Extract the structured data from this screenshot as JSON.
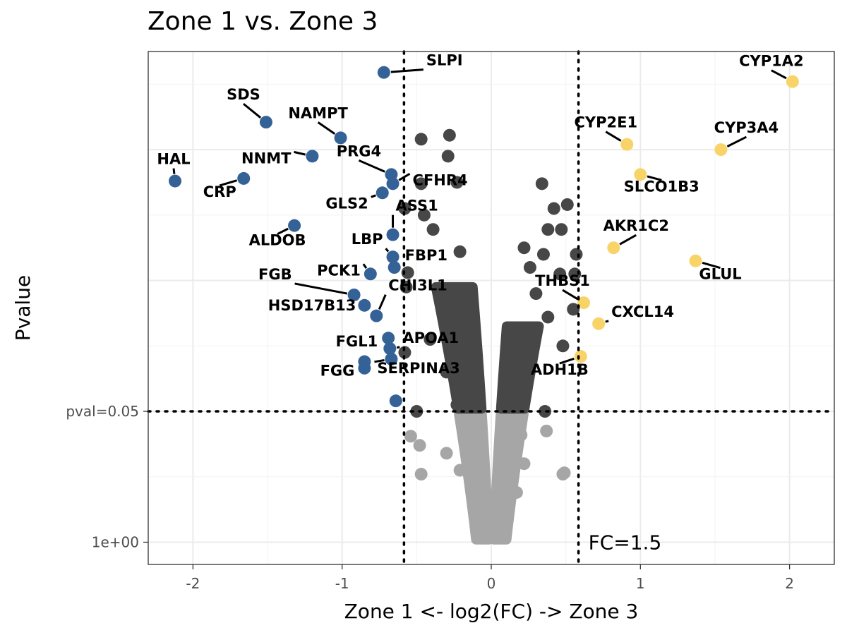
{
  "chart_data": {
    "type": "scatter",
    "title": "Zone 1 vs. Zone 3",
    "xlabel": "Zone 1 <- log2(FC) -> Zone 3",
    "ylabel": "Pvalue",
    "xlim": [
      -2.3,
      2.3
    ],
    "ylim": [
      -0.17,
      3.75
    ],
    "x_ticks": [
      {
        "value": -2,
        "label": "-2"
      },
      {
        "value": -1,
        "label": "-1"
      },
      {
        "value": 0,
        "label": "0"
      },
      {
        "value": 1,
        "label": "1"
      },
      {
        "value": 2,
        "label": "2"
      }
    ],
    "y_ticks": [
      {
        "value": 0,
        "label": "1e+00"
      },
      {
        "value": 1,
        "label": "pval=0.05"
      }
    ],
    "y_scale": "-log10 p (labels show p-values)",
    "grid": true,
    "thresholds": {
      "fc_lines_x": [
        -0.585,
        0.585
      ],
      "fc_label": "FC=1.5",
      "pval_line_y": 1.0
    },
    "colors": {
      "zone1": "#346296",
      "zone3": "#f8d468",
      "significant": "#474747",
      "not_significant": "#a6a6a6"
    },
    "series": [
      {
        "group": "zone1",
        "points": [
          {
            "x": -0.72,
            "y": 3.59,
            "label": "SLPI"
          },
          {
            "x": -1.51,
            "y": 3.21,
            "label": "SDS"
          },
          {
            "x": -1.01,
            "y": 3.09,
            "label": "NAMPT"
          },
          {
            "x": -1.2,
            "y": 2.95,
            "label": "NNMT"
          },
          {
            "x": -2.12,
            "y": 2.76,
            "label": "HAL"
          },
          {
            "x": -1.66,
            "y": 2.78,
            "label": "CRP"
          },
          {
            "x": -0.67,
            "y": 2.81,
            "label": "PRG4"
          },
          {
            "x": -0.66,
            "y": 2.74,
            "label": "CFHR4"
          },
          {
            "x": -0.73,
            "y": 2.67,
            "label": "GLS2"
          },
          {
            "x": -0.66,
            "y": 2.35,
            "label": "ASS1"
          },
          {
            "x": -1.32,
            "y": 2.42,
            "label": "ALDOB"
          },
          {
            "x": -0.66,
            "y": 2.18,
            "label": "LBP"
          },
          {
            "x": -0.65,
            "y": 2.1,
            "label": "FBP1"
          },
          {
            "x": -0.81,
            "y": 2.05,
            "label": "PCK1"
          },
          {
            "x": -0.92,
            "y": 1.89,
            "label": "FGB"
          },
          {
            "x": -0.85,
            "y": 1.81,
            "label": "HSD17B13"
          },
          {
            "x": -0.77,
            "y": 1.73,
            "label": "CHI3L1"
          },
          {
            "x": -0.69,
            "y": 1.56,
            "label": "FGL1"
          },
          {
            "x": -0.68,
            "y": 1.48,
            "label": "APOA1"
          },
          {
            "x": -0.67,
            "y": 1.4,
            "label": "SERPINA3"
          },
          {
            "x": -0.85,
            "y": 1.38,
            "label": "FGG"
          },
          {
            "x": -0.85,
            "y": 1.33,
            "label": ""
          },
          {
            "x": -0.64,
            "y": 1.08,
            "label": ""
          }
        ]
      },
      {
        "group": "zone3",
        "points": [
          {
            "x": 2.02,
            "y": 3.52,
            "label": "CYP1A2"
          },
          {
            "x": 0.91,
            "y": 3.04,
            "label": "CYP2E1"
          },
          {
            "x": 1.54,
            "y": 3.0,
            "label": "CYP3A4"
          },
          {
            "x": 1.0,
            "y": 2.81,
            "label": "SLCO1B3"
          },
          {
            "x": 0.82,
            "y": 2.25,
            "label": "AKR1C2"
          },
          {
            "x": 1.37,
            "y": 2.15,
            "label": "GLUL"
          },
          {
            "x": 0.62,
            "y": 1.83,
            "label": "THBS1"
          },
          {
            "x": 0.72,
            "y": 1.67,
            "label": "CXCL14"
          },
          {
            "x": 0.6,
            "y": 1.42,
            "label": "ADH1B"
          }
        ]
      },
      {
        "group": "significant",
        "points": [
          {
            "x": -0.28,
            "y": 3.11
          },
          {
            "x": -0.47,
            "y": 3.08
          },
          {
            "x": -0.29,
            "y": 2.95
          },
          {
            "x": -0.47,
            "y": 2.74
          },
          {
            "x": -0.23,
            "y": 2.75
          },
          {
            "x": -0.58,
            "y": 2.55
          },
          {
            "x": -0.45,
            "y": 2.5
          },
          {
            "x": -0.39,
            "y": 2.39
          },
          {
            "x": -0.21,
            "y": 2.22
          },
          {
            "x": -0.56,
            "y": 2.06
          },
          {
            "x": -0.57,
            "y": 1.95
          },
          {
            "x": -0.34,
            "y": 1.9
          },
          {
            "x": -0.18,
            "y": 1.72
          },
          {
            "x": -0.58,
            "y": 1.45
          },
          {
            "x": -0.41,
            "y": 1.55
          },
          {
            "x": -0.3,
            "y": 1.3
          },
          {
            "x": -0.23,
            "y": 1.05
          },
          {
            "x": -0.5,
            "y": 1.0
          },
          {
            "x": 0.34,
            "y": 2.74
          },
          {
            "x": 0.42,
            "y": 2.55
          },
          {
            "x": 0.51,
            "y": 2.58
          },
          {
            "x": 0.47,
            "y": 2.39
          },
          {
            "x": 0.38,
            "y": 2.39
          },
          {
            "x": 0.22,
            "y": 2.25
          },
          {
            "x": 0.35,
            "y": 2.2
          },
          {
            "x": 0.26,
            "y": 2.1
          },
          {
            "x": 0.57,
            "y": 2.2
          },
          {
            "x": 0.56,
            "y": 2.05
          },
          {
            "x": 0.46,
            "y": 2.05
          },
          {
            "x": 0.3,
            "y": 1.9
          },
          {
            "x": 0.55,
            "y": 1.78
          },
          {
            "x": 0.38,
            "y": 1.72
          },
          {
            "x": 0.48,
            "y": 1.5
          },
          {
            "x": 0.15,
            "y": 1.15
          },
          {
            "x": 0.36,
            "y": 1.0
          }
        ]
      },
      {
        "group": "not_significant",
        "points": [
          {
            "x": -0.54,
            "y": 0.81
          },
          {
            "x": -0.48,
            "y": 0.74
          },
          {
            "x": -0.47,
            "y": 0.52
          },
          {
            "x": -0.3,
            "y": 0.68
          },
          {
            "x": -0.21,
            "y": 0.55
          },
          {
            "x": -0.12,
            "y": 0.28
          },
          {
            "x": -0.08,
            "y": 0.1
          },
          {
            "x": 0.08,
            "y": 0.05
          },
          {
            "x": 0.17,
            "y": 0.38
          },
          {
            "x": 0.22,
            "y": 0.6
          },
          {
            "x": 0.48,
            "y": 0.52
          },
          {
            "x": 0.49,
            "y": 0.53
          },
          {
            "x": 0.37,
            "y": 0.85
          },
          {
            "x": 0.2,
            "y": 0.82
          }
        ]
      }
    ]
  }
}
